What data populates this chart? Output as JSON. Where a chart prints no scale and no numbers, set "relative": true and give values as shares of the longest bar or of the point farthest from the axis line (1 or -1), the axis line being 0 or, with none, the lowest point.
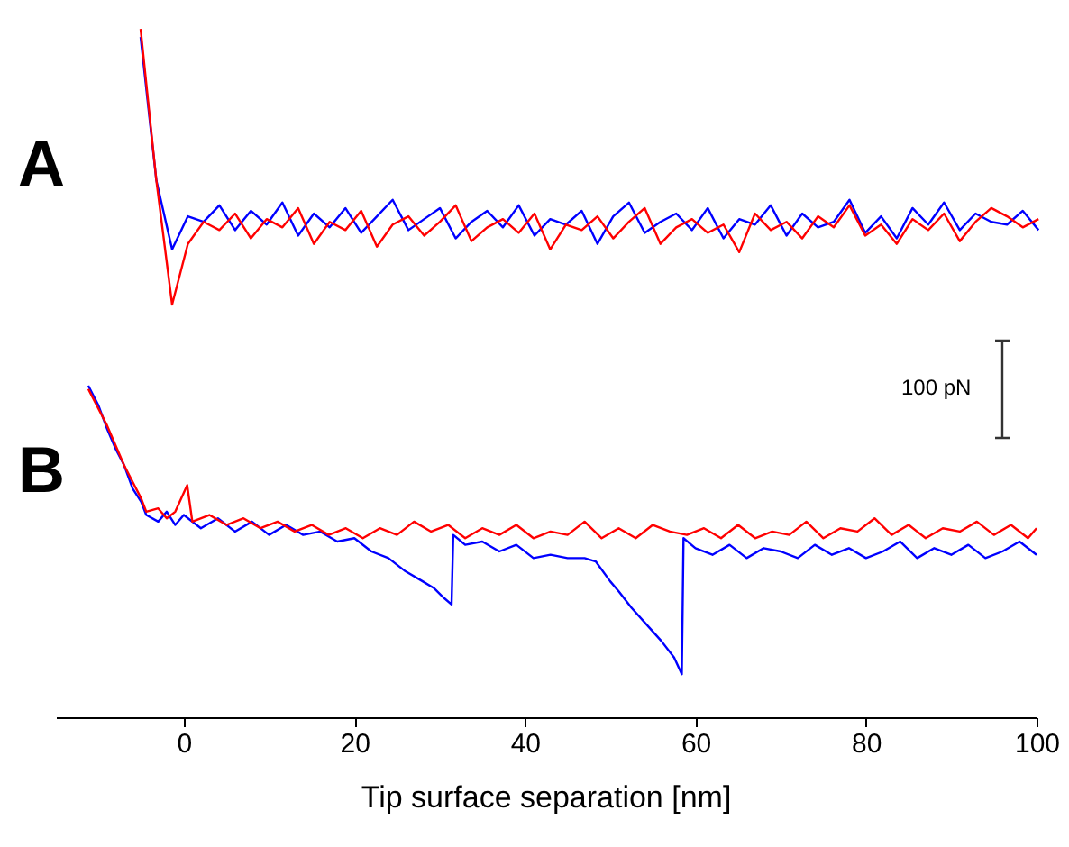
{
  "chart_data": [
    {
      "type": "line",
      "title": "A",
      "relative": true,
      "tick_labels": false,
      "categories": [
        null,
        null,
        null,
        null,
        null,
        null,
        null,
        null,
        null,
        null,
        null,
        null,
        null,
        null,
        null,
        null,
        null,
        null,
        null,
        null,
        null,
        null,
        null,
        null,
        null,
        null,
        null,
        null,
        null,
        null,
        null,
        null,
        null,
        null,
        null,
        null,
        null,
        null,
        null,
        null,
        null,
        null,
        null,
        null,
        null,
        null,
        null,
        null,
        null,
        null,
        null,
        null,
        null,
        null,
        null,
        null,
        null,
        null
      ],
      "series": [
        {
          "color": "#0000ff",
          "values": [
            0.97,
            0.45,
            0.2,
            0.32,
            0.3,
            0.36,
            0.27,
            0.34,
            0.29,
            0.37,
            0.25,
            0.33,
            0.28,
            0.35,
            0.26,
            0.32,
            0.38,
            0.27,
            0.31,
            0.35,
            0.24,
            0.3,
            0.34,
            0.28,
            0.36,
            0.25,
            0.31,
            0.29,
            0.34,
            0.22,
            0.32,
            0.37,
            0.26,
            0.3,
            0.33,
            0.27,
            0.35,
            0.24,
            0.31,
            0.29,
            0.36,
            0.25,
            0.33,
            0.28,
            0.3,
            0.38,
            0.26,
            0.32,
            0.24,
            0.35,
            0.29,
            0.37,
            0.27,
            0.33,
            0.3,
            0.29,
            0.34,
            0.27
          ]
        },
        {
          "color": "#ff0000",
          "values": [
            1,
            0.45,
            0,
            0.22,
            0.3,
            0.27,
            0.33,
            0.24,
            0.31,
            0.28,
            0.35,
            0.22,
            0.3,
            0.27,
            0.34,
            0.21,
            0.29,
            0.32,
            0.25,
            0.3,
            0.36,
            0.23,
            0.28,
            0.31,
            0.26,
            0.33,
            0.2,
            0.29,
            0.27,
            0.32,
            0.24,
            0.3,
            0.35,
            0.22,
            0.28,
            0.31,
            0.26,
            0.29,
            0.19,
            0.33,
            0.27,
            0.3,
            0.24,
            0.32,
            0.28,
            0.36,
            0.25,
            0.29,
            0.22,
            0.31,
            0.27,
            0.33,
            0.23,
            0.3,
            0.35,
            0.32,
            0.28,
            0.31
          ]
        }
      ]
    },
    {
      "type": "line",
      "title": "B",
      "relative": true,
      "xlabel": "Tip surface separation [nm]",
      "xlim": [
        -15,
        100
      ],
      "xticks": [
        0,
        20,
        40,
        60,
        80,
        100
      ],
      "annotations": [
        "100 pN"
      ],
      "series": [
        {
          "color": "#0000ff",
          "x": [
            -11.2,
            -10,
            -9,
            -8,
            -7,
            -6,
            -5,
            -4.4,
            -3,
            -2,
            -1,
            0,
            2,
            4,
            6,
            8,
            10,
            12,
            14,
            16,
            18,
            20,
            22,
            24,
            26,
            28,
            29.3,
            30.5,
            31.4,
            31.6,
            33,
            35,
            37,
            39,
            41,
            43,
            45,
            47,
            48.3,
            50,
            51,
            52.5,
            54.6,
            56,
            57.5,
            58.4,
            58.6,
            60,
            62,
            64,
            66,
            68,
            70,
            72,
            74,
            76,
            78,
            80,
            82,
            84,
            86,
            88,
            90,
            92,
            94,
            96,
            98,
            100
          ],
          "values": [
            1,
            0.94,
            0.87,
            0.81,
            0.76,
            0.69,
            0.65,
            0.61,
            0.59,
            0.62,
            0.58,
            0.61,
            0.57,
            0.6,
            0.56,
            0.59,
            0.55,
            0.58,
            0.55,
            0.56,
            0.53,
            0.54,
            0.5,
            0.48,
            0.44,
            0.41,
            0.39,
            0.36,
            0.34,
            0.55,
            0.52,
            0.53,
            0.5,
            0.52,
            0.48,
            0.49,
            0.48,
            0.48,
            0.47,
            0.41,
            0.38,
            0.33,
            0.27,
            0.23,
            0.18,
            0.13,
            0.54,
            0.51,
            0.49,
            0.52,
            0.48,
            0.51,
            0.5,
            0.48,
            0.52,
            0.49,
            0.51,
            0.48,
            0.5,
            0.53,
            0.48,
            0.51,
            0.49,
            0.52,
            0.48,
            0.5,
            0.53,
            0.49
          ]
        },
        {
          "color": "#ff0000",
          "x": [
            -11.2,
            -10,
            -9,
            -8,
            -7,
            -6,
            -5,
            -4.4,
            -3,
            -2,
            -1,
            0.4,
            1,
            3,
            5,
            7,
            9,
            11,
            13,
            15,
            17,
            19,
            21,
            23,
            25,
            27,
            29,
            31,
            33,
            35,
            37,
            39,
            41,
            43,
            45,
            47,
            49,
            51,
            53,
            55,
            57,
            59,
            61,
            63,
            65,
            67,
            69,
            71,
            73,
            75,
            77,
            79,
            81,
            83,
            85,
            87,
            89,
            91,
            93,
            95,
            97,
            99,
            100
          ],
          "values": [
            0.99,
            0.93,
            0.88,
            0.82,
            0.76,
            0.71,
            0.66,
            0.62,
            0.63,
            0.6,
            0.62,
            0.7,
            0.59,
            0.61,
            0.58,
            0.6,
            0.57,
            0.59,
            0.56,
            0.58,
            0.55,
            0.57,
            0.54,
            0.57,
            0.55,
            0.59,
            0.56,
            0.58,
            0.54,
            0.57,
            0.55,
            0.58,
            0.54,
            0.56,
            0.55,
            0.59,
            0.54,
            0.57,
            0.54,
            0.58,
            0.56,
            0.55,
            0.57,
            0.54,
            0.58,
            0.54,
            0.56,
            0.55,
            0.59,
            0.54,
            0.57,
            0.56,
            0.6,
            0.55,
            0.58,
            0.54,
            0.57,
            0.56,
            0.59,
            0.55,
            0.58,
            0.54,
            0.57
          ]
        }
      ]
    }
  ]
}
